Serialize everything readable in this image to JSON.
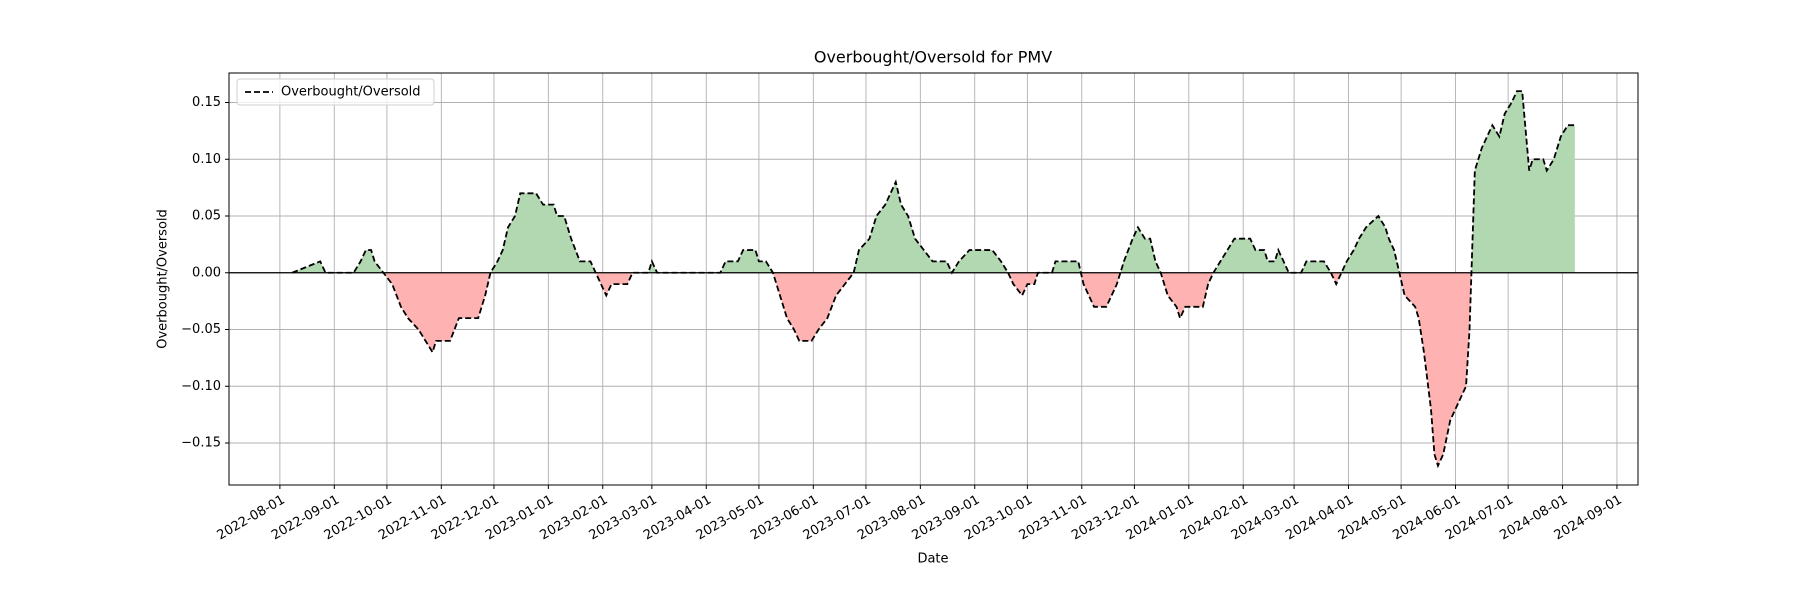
{
  "chart_data": {
    "type": "line",
    "title": "Overbought/Oversold for PMV",
    "x_label": "Date",
    "y_label": "Overbought/Oversold",
    "x": [
      "2022-08-08",
      "2022-08-24",
      "2022-08-27",
      "2022-09-12",
      "2022-09-16",
      "2022-09-19",
      "2022-09-22",
      "2022-09-24",
      "2022-09-29",
      "2022-10-04",
      "2022-10-09",
      "2022-10-13",
      "2022-10-19",
      "2022-10-23",
      "2022-10-27",
      "2022-10-29",
      "2022-11-06",
      "2022-11-11",
      "2022-11-22",
      "2022-11-26",
      "2022-11-29",
      "2022-12-03",
      "2022-12-06",
      "2022-12-09",
      "2022-12-13",
      "2022-12-16",
      "2022-12-25",
      "2022-12-29",
      "2023-01-04",
      "2023-01-06",
      "2023-01-10",
      "2023-01-14",
      "2023-01-19",
      "2023-01-25",
      "2023-01-28",
      "2023-01-31",
      "2023-02-03",
      "2023-02-06",
      "2023-02-15",
      "2023-02-18",
      "2023-02-27",
      "2023-03-01",
      "2023-03-04",
      "2023-04-09",
      "2023-04-12",
      "2023-04-19",
      "2023-04-22",
      "2023-04-29",
      "2023-05-01",
      "2023-05-05",
      "2023-05-09",
      "2023-05-13",
      "2023-05-17",
      "2023-05-21",
      "2023-05-24",
      "2023-05-31",
      "2023-06-04",
      "2023-06-09",
      "2023-06-14",
      "2023-06-19",
      "2023-06-24",
      "2023-06-27",
      "2023-07-03",
      "2023-07-07",
      "2023-07-12",
      "2023-07-15",
      "2023-07-18",
      "2023-07-21",
      "2023-07-25",
      "2023-07-29",
      "2023-08-03",
      "2023-08-08",
      "2023-08-16",
      "2023-08-19",
      "2023-08-23",
      "2023-08-29",
      "2023-09-11",
      "2023-09-16",
      "2023-09-20",
      "2023-09-23",
      "2023-09-28",
      "2023-10-01",
      "2023-10-05",
      "2023-10-07",
      "2023-10-15",
      "2023-10-17",
      "2023-10-30",
      "2023-11-02",
      "2023-11-05",
      "2023-11-08",
      "2023-11-15",
      "2023-11-18",
      "2023-11-21",
      "2023-11-25",
      "2023-11-30",
      "2023-12-03",
      "2023-12-07",
      "2023-12-10",
      "2023-12-13",
      "2023-12-16",
      "2023-12-20",
      "2023-12-25",
      "2023-12-27",
      "2023-12-30",
      "2024-01-09",
      "2024-01-12",
      "2024-01-15",
      "2024-01-19",
      "2024-01-23",
      "2024-01-27",
      "2024-02-05",
      "2024-02-08",
      "2024-02-13",
      "2024-02-15",
      "2024-02-19",
      "2024-02-21",
      "2024-02-24",
      "2024-02-27",
      "2024-03-05",
      "2024-03-08",
      "2024-03-18",
      "2024-03-22",
      "2024-03-25",
      "2024-03-28",
      "2024-03-31",
      "2024-04-04",
      "2024-04-07",
      "2024-04-11",
      "2024-04-18",
      "2024-04-22",
      "2024-04-24",
      "2024-04-27",
      "2024-04-30",
      "2024-05-03",
      "2024-05-09",
      "2024-05-11",
      "2024-05-14",
      "2024-05-18",
      "2024-05-20",
      "2024-05-22",
      "2024-05-25",
      "2024-05-29",
      "2024-06-01",
      "2024-06-04",
      "2024-06-07",
      "2024-06-09",
      "2024-06-12",
      "2024-06-16",
      "2024-06-19",
      "2024-06-22",
      "2024-06-26",
      "2024-06-29",
      "2024-07-03",
      "2024-07-06",
      "2024-07-09",
      "2024-07-13",
      "2024-07-15",
      "2024-07-21",
      "2024-07-23",
      "2024-07-27",
      "2024-07-31",
      "2024-08-04",
      "2024-08-08"
    ],
    "series": [
      {
        "name": "Overbought/Oversold",
        "color": "#000000",
        "values": [
          0.0,
          0.01,
          0.0,
          0.0,
          0.01,
          0.02,
          0.02,
          0.01,
          0.0,
          -0.01,
          -0.03,
          -0.04,
          -0.05,
          -0.06,
          -0.07,
          -0.06,
          -0.06,
          -0.04,
          -0.04,
          -0.02,
          0.0,
          0.01,
          0.02,
          0.04,
          0.05,
          0.07,
          0.07,
          0.06,
          0.06,
          0.05,
          0.05,
          0.03,
          0.01,
          0.01,
          0.0,
          -0.01,
          -0.02,
          -0.01,
          -0.01,
          0.0,
          0.0,
          0.01,
          0.0,
          0.0,
          0.01,
          0.01,
          0.02,
          0.02,
          0.01,
          0.01,
          0.0,
          -0.02,
          -0.04,
          -0.05,
          -0.06,
          -0.06,
          -0.05,
          -0.04,
          -0.02,
          -0.01,
          0.0,
          0.02,
          0.03,
          0.05,
          0.06,
          0.07,
          0.08,
          0.06,
          0.05,
          0.03,
          0.02,
          0.01,
          0.01,
          0.0,
          0.01,
          0.02,
          0.02,
          0.01,
          0.0,
          -0.01,
          -0.02,
          -0.01,
          -0.01,
          0.0,
          0.0,
          0.01,
          0.01,
          -0.01,
          -0.02,
          -0.03,
          -0.03,
          -0.02,
          -0.01,
          0.01,
          0.03,
          0.04,
          0.03,
          0.03,
          0.01,
          0.0,
          -0.02,
          -0.03,
          -0.04,
          -0.03,
          -0.03,
          -0.01,
          0.0,
          0.01,
          0.02,
          0.03,
          0.03,
          0.02,
          0.02,
          0.01,
          0.01,
          0.02,
          0.01,
          0.0,
          0.0,
          0.01,
          0.01,
          0.0,
          -0.01,
          0.0,
          0.01,
          0.02,
          0.03,
          0.04,
          0.05,
          0.04,
          0.03,
          0.02,
          0.0,
          -0.02,
          -0.03,
          -0.04,
          -0.07,
          -0.12,
          -0.16,
          -0.17,
          -0.16,
          -0.13,
          -0.12,
          -0.11,
          -0.1,
          -0.05,
          0.09,
          0.11,
          0.12,
          0.13,
          0.12,
          0.14,
          0.15,
          0.16,
          0.16,
          0.09,
          0.1,
          0.1,
          0.09,
          0.1,
          0.12,
          0.13,
          0.13
        ]
      }
    ],
    "positive_color": "#b2d8b2",
    "negative_color": "#ffb2b2",
    "xlim": [
      "2022-07-03",
      "2024-09-13"
    ],
    "xticks": [
      "2022-08-01",
      "2022-09-01",
      "2022-10-01",
      "2022-11-01",
      "2022-12-01",
      "2023-01-01",
      "2023-02-01",
      "2023-03-01",
      "2023-04-01",
      "2023-05-01",
      "2023-06-01",
      "2023-07-01",
      "2023-08-01",
      "2023-09-01",
      "2023-10-01",
      "2023-11-01",
      "2023-12-01",
      "2024-01-01",
      "2024-02-01",
      "2024-03-01",
      "2024-04-01",
      "2024-05-01",
      "2024-06-01",
      "2024-07-01",
      "2024-08-01",
      "2024-09-01"
    ],
    "ylim": [
      -0.187,
      0.176
    ],
    "yticks": [
      {
        "value": -0.15,
        "label": "−0.15"
      },
      {
        "value": -0.1,
        "label": "−0.10"
      },
      {
        "value": -0.05,
        "label": "−0.05"
      },
      {
        "value": 0,
        "label": "0.00"
      },
      {
        "value": 0.05,
        "label": "0.05"
      },
      {
        "value": 0.1,
        "label": "0.10"
      },
      {
        "value": 0.15,
        "label": "0.15"
      }
    ],
    "grid": true,
    "legend": "upper left"
  }
}
